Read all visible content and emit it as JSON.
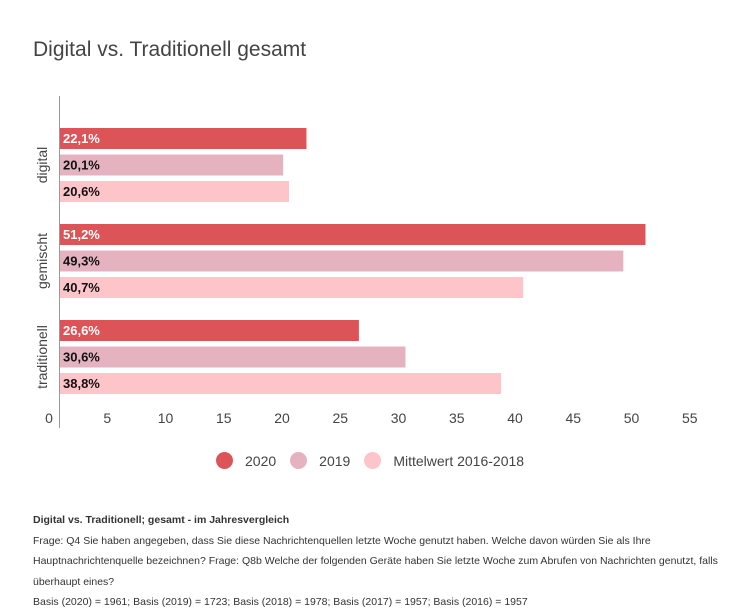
{
  "title": "Digital vs. Traditionell gesamt",
  "chart_data": {
    "type": "bar",
    "orientation": "horizontal",
    "title": "Digital vs. Traditionell gesamt",
    "categories": [
      "digital",
      "gemischt",
      "traditionell"
    ],
    "series": [
      {
        "name": "2020",
        "color": "#dc5458",
        "label_color": "#ffffff",
        "values": [
          22.1,
          51.2,
          26.6
        ],
        "labels": [
          "22,1%",
          "51,2%",
          "26,6%"
        ]
      },
      {
        "name": "2019",
        "color": "#e5b3bf",
        "label_color": "#111111",
        "values": [
          20.1,
          49.3,
          30.6
        ],
        "labels": [
          "20,1%",
          "49,3%",
          "30,6%"
        ]
      },
      {
        "name": "Mittelwert 2016-2018",
        "color": "#fdc5ca",
        "label_color": "#111111",
        "values": [
          20.6,
          40.7,
          38.8
        ],
        "labels": [
          "20,6%",
          "40,7%",
          "38,8%"
        ]
      }
    ],
    "xlim": [
      0,
      55
    ],
    "xticks": [
      0,
      5,
      10,
      15,
      20,
      25,
      30,
      35,
      40,
      45,
      50,
      55
    ],
    "xlabel": "",
    "ylabel": "",
    "grid": false,
    "legend_position": "bottom"
  },
  "notes": {
    "heading": "Digital vs. Traditionell; gesamt - im Jahresvergleich",
    "question": "Frage: Q4 Sie haben angegeben, dass Sie diese Nachrichtenquellen letzte Woche genutzt haben. Welche davon würden Sie als Ihre Hauptnachrichtenquelle bezeichnen? Frage: Q8b Welche der folgenden Geräte haben Sie letzte Woche zum Abrufen von Nachrichten genutzt, falls überhaupt eines?",
    "basis": "Basis (2020) = 1961; Basis (2019) = 1723; Basis (2018) = 1978; Basis (2017) = 1957; Basis (2016) = 1957"
  }
}
